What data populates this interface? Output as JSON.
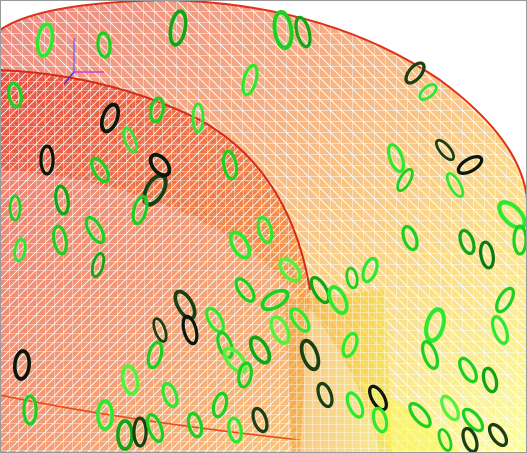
{
  "viewport": {
    "background": "#ffffff",
    "frame_color": "#9a9a9a"
  },
  "axes_gizmo": {
    "icon": "axes-triad-icon",
    "x_color": "#d040d0",
    "y_color": "#6a6aff",
    "z_color": "#3a3ad0"
  },
  "mesh": {
    "style": "wireframe",
    "gradient": [
      "#e02418",
      "#ee5a1c",
      "#f6a020",
      "#fbd22a",
      "#f8ff4a"
    ]
  },
  "rings": {
    "palette": [
      "#1fcf1f",
      "#2ee82e",
      "#58ef3a",
      "#14a514",
      "#0f7a14",
      "#1d3d12",
      "#0d160d"
    ],
    "highlight": "#d8ffd0"
  }
}
